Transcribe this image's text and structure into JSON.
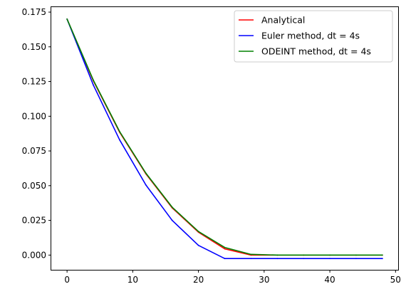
{
  "chart_data": {
    "type": "line",
    "title": "",
    "xlabel": "",
    "ylabel": "",
    "xlim": [
      -2.4,
      50.4
    ],
    "ylim": [
      -0.0106,
      0.1786
    ],
    "xticks": [
      0,
      10,
      20,
      30,
      40,
      50
    ],
    "xtick_labels": [
      "0",
      "10",
      "20",
      "30",
      "40",
      "50"
    ],
    "yticks": [
      0.0,
      0.025,
      0.05,
      0.075,
      0.1,
      0.125,
      0.15,
      0.175
    ],
    "ytick_labels": [
      "0.000",
      "0.025",
      "0.050",
      "0.075",
      "0.100",
      "0.125",
      "0.150",
      "0.175"
    ],
    "grid": false,
    "legend_position": "top-right",
    "series": [
      {
        "name": "Analytical",
        "color": "#ff0000",
        "x": [
          0,
          4,
          8,
          12,
          16,
          20,
          24,
          28,
          32,
          36,
          40,
          44,
          48
        ],
        "y": [
          0.17,
          0.1255,
          0.0885,
          0.0585,
          0.034,
          0.0165,
          0.0045,
          0.0,
          0.0,
          0.0,
          0.0,
          0.0,
          0.0
        ]
      },
      {
        "name": "Euler method, dt = 4s",
        "color": "#0000ff",
        "x": [
          0,
          4,
          8,
          12,
          16,
          20,
          24,
          28,
          32,
          36,
          40,
          44,
          48
        ],
        "y": [
          0.17,
          0.1225,
          0.083,
          0.0505,
          0.025,
          0.007,
          -0.0025,
          -0.0025,
          -0.0025,
          -0.0025,
          -0.0025,
          -0.0025,
          -0.0025
        ]
      },
      {
        "name": "ODEINT method, dt = 4s",
        "color": "#008000",
        "x": [
          0,
          4,
          8,
          12,
          16,
          20,
          24,
          28,
          32,
          36,
          40,
          44,
          48
        ],
        "y": [
          0.17,
          0.126,
          0.089,
          0.059,
          0.0345,
          0.017,
          0.0055,
          0.0005,
          0.0,
          0.0,
          0.0,
          0.0,
          0.0
        ]
      }
    ]
  }
}
